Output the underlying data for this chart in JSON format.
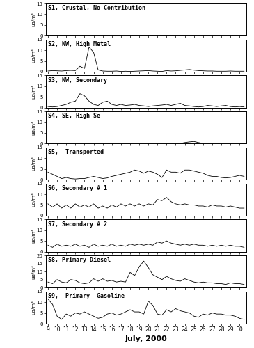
{
  "title": "July, 2000",
  "subplots": [
    {
      "label": "S1, Crustal, No Contribution",
      "ylim": [
        0,
        15
      ],
      "yticks": [
        0,
        5,
        10,
        15
      ],
      "data": [
        0,
        0,
        0,
        0,
        0,
        0,
        0,
        0,
        0,
        0,
        0,
        0,
        0,
        0,
        0,
        0,
        0,
        0,
        0,
        0,
        0,
        0,
        0,
        0,
        0,
        0,
        0,
        0,
        0,
        0,
        0,
        0,
        0,
        0,
        0,
        0,
        0,
        0,
        0,
        0,
        0,
        0,
        0,
        0
      ]
    },
    {
      "label": "S2, NW, High Metal",
      "ylim": [
        0,
        15
      ],
      "yticks": [
        0,
        5,
        10,
        15
      ],
      "data": [
        0.3,
        0.5,
        0.4,
        0.3,
        0.5,
        0.6,
        0.5,
        2.5,
        1.5,
        11.5,
        9.0,
        0.8,
        0.3,
        0.2,
        0.2,
        0.3,
        0.1,
        0.2,
        0.1,
        0.2,
        0.3,
        0.4,
        0.5,
        0.3,
        0.2,
        0.1,
        0.5,
        0.3,
        0.4,
        0.6,
        0.8,
        1.0,
        0.7,
        0.5,
        0.4,
        0.3,
        0.3,
        0.2,
        0.2,
        0.2,
        0.3,
        0.2,
        0.2,
        0.2
      ]
    },
    {
      "label": "S3, NW, Secondary",
      "ylim": [
        0,
        15
      ],
      "yticks": [
        0,
        5,
        10,
        15
      ],
      "data": [
        0.5,
        0.3,
        0.5,
        1.0,
        1.5,
        2.5,
        3.0,
        6.5,
        5.5,
        3.0,
        1.5,
        1.0,
        2.5,
        3.0,
        1.5,
        1.0,
        1.5,
        1.0,
        1.2,
        1.5,
        1.0,
        0.8,
        0.5,
        0.8,
        1.0,
        1.2,
        1.5,
        1.0,
        1.5,
        2.0,
        1.0,
        0.8,
        0.5,
        0.3,
        0.5,
        1.0,
        0.8,
        0.5,
        0.8,
        1.0,
        0.5,
        0.3,
        0.5,
        0.3
      ]
    },
    {
      "label": "S4, SE, High Se",
      "ylim": [
        0,
        15
      ],
      "yticks": [
        0,
        5,
        10,
        15
      ],
      "data": [
        0.1,
        0.1,
        0.1,
        0.1,
        0.1,
        0.1,
        0.1,
        0.1,
        0.1,
        0.1,
        0.1,
        0.1,
        0.1,
        0.1,
        0.1,
        0.1,
        0.1,
        0.1,
        0.1,
        0.1,
        0.1,
        0.1,
        0.1,
        0.1,
        0.1,
        0.1,
        0.1,
        0.1,
        0.1,
        0.1,
        0.5,
        0.8,
        1.0,
        0.5,
        0.1,
        0.1,
        0.1,
        0.1,
        0.1,
        0.1,
        0.1,
        0.1,
        0.1,
        0.1
      ]
    },
    {
      "label": "S5,  Transported",
      "ylim": [
        0,
        15
      ],
      "yticks": [
        0,
        5,
        10,
        15
      ],
      "data": [
        3.5,
        2.5,
        1.5,
        0.5,
        1.0,
        0.5,
        0.3,
        0.5,
        0.5,
        1.0,
        1.5,
        1.0,
        0.5,
        0.8,
        1.5,
        2.0,
        2.5,
        3.0,
        3.5,
        4.5,
        4.0,
        3.0,
        4.0,
        3.5,
        2.5,
        1.0,
        4.5,
        3.5,
        3.5,
        3.0,
        4.5,
        4.5,
        4.0,
        3.5,
        3.0,
        2.0,
        1.5,
        1.5,
        1.0,
        0.8,
        1.0,
        1.5,
        2.0,
        1.5
      ]
    },
    {
      "label": "S6, Secondary # 1",
      "ylim": [
        0,
        15
      ],
      "yticks": [
        0,
        5,
        10,
        15
      ],
      "data": [
        5.5,
        4.0,
        5.5,
        3.5,
        5.0,
        3.5,
        5.5,
        4.0,
        5.0,
        4.0,
        5.5,
        3.5,
        4.5,
        3.5,
        5.0,
        4.0,
        5.5,
        4.5,
        5.5,
        4.5,
        5.5,
        4.5,
        5.5,
        5.0,
        7.5,
        7.0,
        8.5,
        6.5,
        5.5,
        5.0,
        5.5,
        5.0,
        5.0,
        4.5,
        4.5,
        4.0,
        5.0,
        4.5,
        4.5,
        4.0,
        4.5,
        4.0,
        3.5,
        3.5
      ]
    },
    {
      "label": "S7, Secondary # 2",
      "ylim": [
        0,
        15
      ],
      "yticks": [
        0,
        5,
        10,
        15
      ],
      "data": [
        3.0,
        2.0,
        3.5,
        2.5,
        3.0,
        2.5,
        3.5,
        2.5,
        3.0,
        2.0,
        3.5,
        2.5,
        3.0,
        2.5,
        3.5,
        2.5,
        3.0,
        2.5,
        3.5,
        3.0,
        3.5,
        3.0,
        3.5,
        3.0,
        4.5,
        4.0,
        5.0,
        4.0,
        3.5,
        3.0,
        3.5,
        3.0,
        3.5,
        3.0,
        3.0,
        2.5,
        3.0,
        2.5,
        3.0,
        2.5,
        3.0,
        2.5,
        2.5,
        2.0
      ]
    },
    {
      "label": "S8, Primary Diesel",
      "ylim": [
        0,
        20
      ],
      "yticks": [
        0,
        5,
        10,
        15,
        20
      ],
      "data": [
        3.5,
        2.5,
        5.0,
        3.5,
        3.0,
        5.0,
        4.5,
        3.0,
        2.5,
        3.0,
        5.5,
        4.0,
        5.5,
        4.0,
        4.5,
        3.5,
        4.0,
        3.5,
        9.5,
        7.5,
        13.0,
        16.5,
        12.5,
        8.0,
        6.5,
        5.0,
        7.0,
        5.5,
        4.5,
        4.0,
        5.5,
        4.5,
        3.5,
        3.0,
        3.5,
        3.0,
        3.0,
        2.5,
        2.5,
        2.0,
        3.0,
        2.5,
        2.5,
        2.0
      ]
    },
    {
      "label": "S9,  Primary  Gasoline",
      "ylim": [
        0,
        15
      ],
      "yticks": [
        0,
        5,
        10,
        15
      ],
      "data": [
        11.5,
        9.0,
        3.5,
        2.0,
        4.5,
        3.5,
        5.0,
        4.5,
        5.5,
        4.5,
        3.5,
        2.5,
        3.0,
        4.5,
        5.0,
        4.0,
        4.5,
        5.5,
        6.5,
        5.5,
        5.5,
        4.5,
        10.5,
        8.5,
        4.5,
        4.0,
        6.5,
        5.5,
        7.0,
        6.0,
        5.5,
        5.0,
        3.5,
        3.0,
        4.5,
        4.0,
        5.0,
        4.5,
        4.5,
        4.0,
        4.0,
        3.5,
        2.5,
        2.0
      ]
    }
  ],
  "x_dates": [
    9,
    10,
    11,
    12,
    13,
    14,
    15,
    16,
    17,
    18,
    19,
    20,
    21,
    22,
    23,
    24,
    25,
    26,
    27,
    28,
    29,
    30
  ],
  "n_per_day": 2,
  "ylabel": "μg/m³"
}
